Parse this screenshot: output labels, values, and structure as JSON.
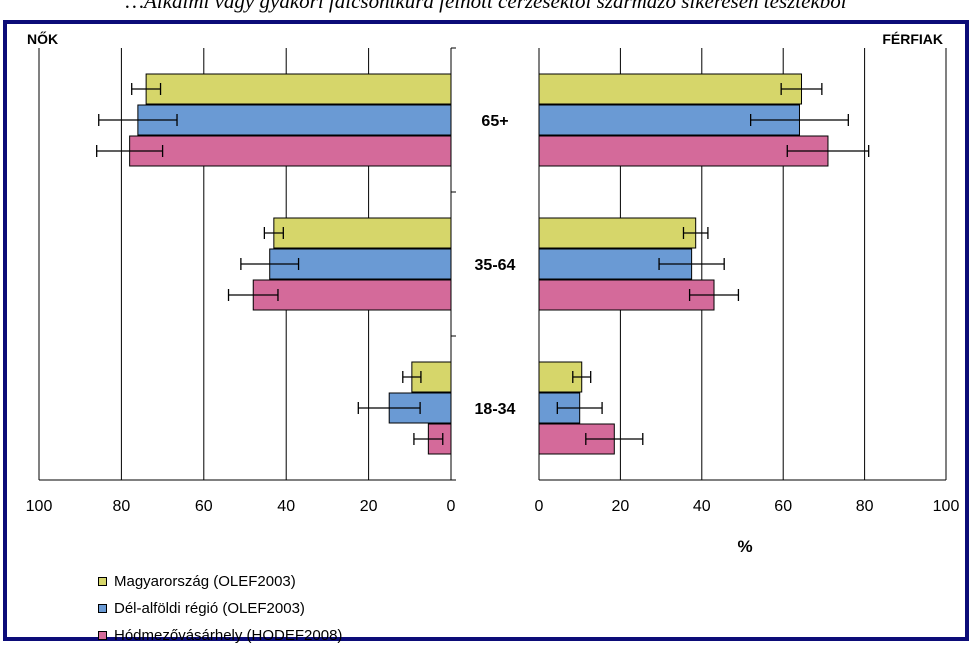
{
  "caption": "…Alkalmi vagy gyakori falcsontkúra felnőtt cérzésektől származó sikeresen tesztekből",
  "chart_data": {
    "type": "bar",
    "left_panel_label": "NŐK",
    "right_panel_label": "FÉRFIAK",
    "xlabel": "%",
    "xlim": [
      0,
      100
    ],
    "ticks": [
      0,
      20,
      40,
      60,
      80,
      100
    ],
    "grid": true,
    "legend_position": "bottom-left",
    "categories": [
      "65+",
      "35-64",
      "18-34"
    ],
    "series": [
      {
        "name": "Magyarország (OLEF2003)",
        "color": "#d6d66a",
        "women": [
          74,
          43,
          9.5
        ],
        "women_err": [
          3.5,
          2.3,
          2.2
        ],
        "men": [
          64.5,
          38.5,
          10.5
        ],
        "men_err": [
          5,
          3,
          2.2
        ]
      },
      {
        "name": "Dél-alföldi régió (OLEF2003)",
        "color": "#6a9ad4",
        "women": [
          76,
          44,
          15
        ],
        "women_err": [
          9.5,
          7,
          7.5
        ],
        "men": [
          64,
          37.5,
          10
        ],
        "men_err": [
          12,
          8,
          5.5
        ]
      },
      {
        "name": "Hódmezővásárhely (HODEF2008)",
        "color": "#d46a9a",
        "women": [
          78,
          48,
          5.5
        ],
        "women_err": [
          8,
          6,
          3.5
        ],
        "men": [
          71,
          43,
          18.5
        ],
        "men_err": [
          10,
          6,
          7
        ]
      }
    ]
  }
}
